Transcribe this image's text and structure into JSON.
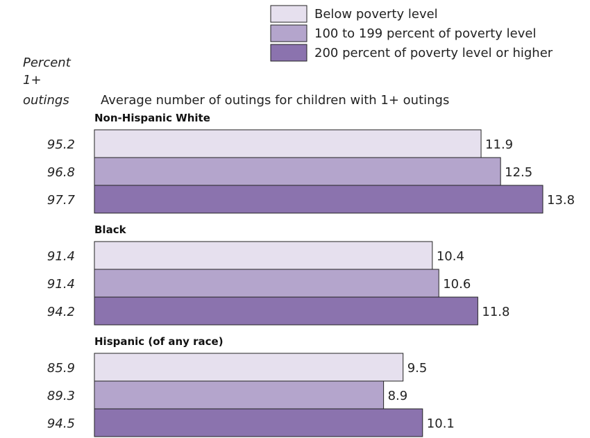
{
  "chart_data": {
    "type": "bar",
    "orientation": "horizontal",
    "title": "Average number of outings for children with 1+ outings",
    "left_column_title": [
      "Percent",
      "1+",
      "outings"
    ],
    "legend_position": "top-right",
    "series": [
      {
        "name": "Below poverty level",
        "color": "#e6e0ee"
      },
      {
        "name": "100 to 199 percent of poverty level",
        "color": "#b4a5cc"
      },
      {
        "name": "200 percent of poverty level or higher",
        "color": "#8b73ae"
      }
    ],
    "groups": [
      {
        "label": "Non-Hispanic White",
        "percents": [
          "95.2",
          "96.8",
          "97.7"
        ],
        "values": [
          11.9,
          12.5,
          13.8
        ]
      },
      {
        "label": "Black",
        "percents": [
          "91.4",
          "91.4",
          "94.2"
        ],
        "values": [
          10.4,
          10.6,
          11.8
        ]
      },
      {
        "label": "Hispanic (of any race)",
        "percents": [
          "85.9",
          "89.3",
          "94.5"
        ],
        "values": [
          9.5,
          8.9,
          10.1
        ]
      }
    ],
    "xlim": [
      0,
      13.8
    ],
    "grid": false,
    "axes_visible": false
  }
}
